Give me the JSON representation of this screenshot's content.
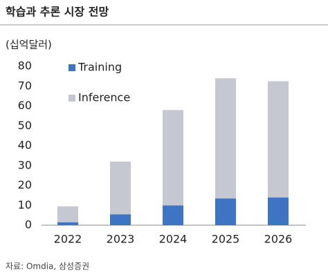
{
  "chart_data": {
    "type": "bar",
    "stacked": true,
    "title": "학습과 추론 시장 전망",
    "unit": "(십억달러)",
    "source": "자료: Omdia, 삼성증권",
    "categories": [
      "2022",
      "2023",
      "2024",
      "2025",
      "2026"
    ],
    "series": [
      {
        "name": "Training",
        "color": "#3f74c4",
        "values": [
          1.5,
          5.5,
          10,
          13.5,
          14
        ]
      },
      {
        "name": "Inference",
        "color": "#c5c8d1",
        "values": [
          8,
          26.5,
          48,
          60.5,
          58.5
        ]
      }
    ],
    "ylim": [
      0,
      80
    ],
    "yticks": [
      0,
      10,
      20,
      30,
      40,
      50,
      60,
      70,
      80
    ],
    "grid": false
  }
}
